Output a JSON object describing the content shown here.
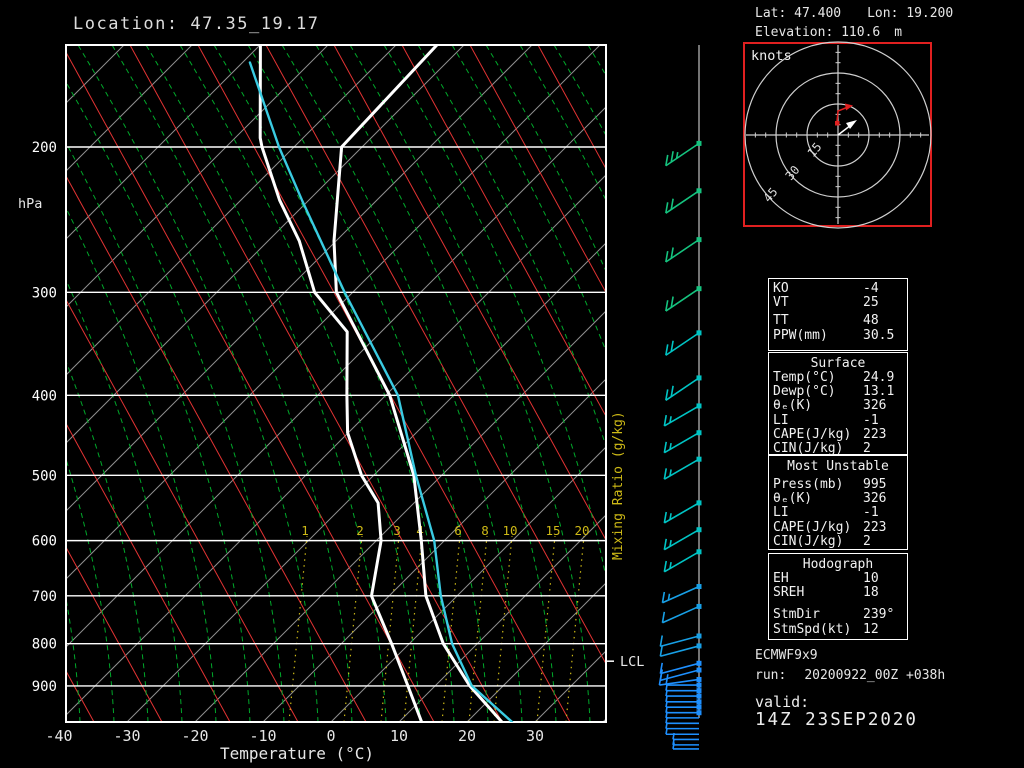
{
  "header": {
    "title": "Location: 47.35_19.17"
  },
  "info": {
    "lat_label": "Lat:",
    "lat": "47.400",
    "lon_label": "Lon:",
    "lon": "19.200",
    "elev_label": "Elevation:",
    "elev": "110.6",
    "elev_unit": "m"
  },
  "hodograph_panel": {
    "unit_label": "knots",
    "ring_labels": [
      "15",
      "30",
      "45"
    ],
    "ring_radii_kt": [
      15,
      30,
      45
    ]
  },
  "stats": {
    "boxes": [
      {
        "rows": [
          {
            "label": "KO",
            "value": "-4"
          },
          {
            "label": "VT",
            "value": "25"
          },
          {
            "label": "TT",
            "value": "48"
          },
          {
            "label": "PPW(mm)",
            "value": "30.5"
          }
        ]
      },
      {
        "header": "Surface",
        "rows": [
          {
            "label": "Temp(°C)",
            "value": "24.9"
          },
          {
            "label": "Dewp(°C)",
            "value": "13.1"
          },
          {
            "label": "θₑ(K)",
            "value": "326"
          },
          {
            "label": "LI",
            "value": "-1"
          },
          {
            "label": "CAPE(J/kg)",
            "value": "223"
          },
          {
            "label": "CIN(J/kg)",
            "value": "2"
          }
        ]
      },
      {
        "header": "Most Unstable",
        "rows": [
          {
            "label": "Press(mb)",
            "value": "995"
          },
          {
            "label": "θₑ(K)",
            "value": "326"
          },
          {
            "label": "LI",
            "value": "-1"
          },
          {
            "label": "CAPE(J/kg)",
            "value": "223"
          },
          {
            "label": "CIN(J/kg)",
            "value": "2"
          }
        ]
      },
      {
        "header": "Hodograph",
        "rows": [
          {
            "label": "EH",
            "value": "10"
          },
          {
            "label": "SREH",
            "value": "18"
          },
          {
            "label": "StmDir",
            "value": "239°"
          },
          {
            "label": "StmSpd(kt)",
            "value": "12"
          }
        ]
      }
    ]
  },
  "model": {
    "name": "ECMWF9x9",
    "run_label": "run:",
    "run_value": "20200922_00Z +038h",
    "valid_label": "valid:",
    "valid_value": "14Z 23SEP2020"
  },
  "chart_data": {
    "type": "skewt_log_p",
    "title": "Location: 47.35_19.17",
    "xlabel": "Temperature (°C)",
    "ylabel": "hPa",
    "pressure_axis_hpa": [
      200,
      300,
      400,
      500,
      600,
      700,
      800,
      900
    ],
    "temp_axis_c": [
      -40,
      -30,
      -20,
      -10,
      0,
      10,
      20,
      30
    ],
    "pressure_range_hpa": [
      150,
      995
    ],
    "grid": "skewt (isotherms 45°, dry/moist adiabats, mixing-ratio lines)",
    "series": [
      {
        "name": "temperature",
        "color": "#ffffff",
        "points": [
          [
            995,
            25.1
          ],
          [
            900,
            15.1
          ],
          [
            800,
            5.0
          ],
          [
            700,
            -4.6
          ],
          [
            600,
            -13.4
          ],
          [
            500,
            -24.1
          ],
          [
            400,
            -39.4
          ],
          [
            300,
            -62.4
          ],
          [
            260,
            -70.3
          ],
          [
            200,
            -83.0
          ],
          [
            150,
            -84.0
          ]
        ]
      },
      {
        "name": "dewpoint",
        "color": "#ffffff",
        "points": [
          [
            995,
            13.3
          ],
          [
            900,
            6.0
          ],
          [
            800,
            -2.6
          ],
          [
            700,
            -12.6
          ],
          [
            600,
            -19.3
          ],
          [
            540,
            -25.3
          ],
          [
            500,
            -31.8
          ],
          [
            444,
            -40.1
          ],
          [
            400,
            -45.7
          ],
          [
            335,
            -55.0
          ],
          [
            300,
            -65.6
          ],
          [
            260,
            -75.4
          ],
          [
            232,
            -84.3
          ],
          [
            200,
            -94.7
          ],
          [
            195,
            -96.3
          ],
          [
            150,
            -110.1
          ]
        ]
      },
      {
        "name": "virtual_temperature",
        "color": "#3acbe2",
        "points": [
          [
            995,
            26.6
          ],
          [
            900,
            15.4
          ],
          [
            800,
            6.3
          ],
          [
            700,
            -2.4
          ],
          [
            600,
            -11.5
          ],
          [
            500,
            -23.8
          ],
          [
            400,
            -38.2
          ],
          [
            300,
            -61.2
          ],
          [
            232,
            -81.0
          ],
          [
            200,
            -92.2
          ],
          [
            158,
            -108.9
          ]
        ]
      }
    ],
    "lcl": {
      "label": "LCL",
      "pressure_hpa": 840
    },
    "mixing_ratio_label_title": "Mixing Ratio (g/kg)",
    "mixing_ratio_labels": [
      {
        "v": "1",
        "x": 305
      },
      {
        "v": "2",
        "x": 360
      },
      {
        "v": "3",
        "x": 397
      },
      {
        "v": "4",
        "x": 420
      },
      {
        "v": "6",
        "x": 458
      },
      {
        "v": "8",
        "x": 485
      },
      {
        "v": "10",
        "x": 510
      },
      {
        "v": "15",
        "x": 553
      },
      {
        "v": "20",
        "x": 582
      }
    ],
    "wind_barbs": [
      {
        "p": 198,
        "spd": 25
      },
      {
        "p": 226,
        "spd": 20
      },
      {
        "p": 259,
        "spd": 20
      },
      {
        "p": 297,
        "spd": 20
      },
      {
        "p": 336,
        "spd": 20
      },
      {
        "p": 381,
        "spd": 20
      },
      {
        "p": 412,
        "spd": 15
      },
      {
        "p": 444,
        "spd": 15
      },
      {
        "p": 478,
        "spd": 15
      },
      {
        "p": 540,
        "spd": 15
      },
      {
        "p": 582,
        "spd": 15
      },
      {
        "p": 619,
        "spd": 15
      },
      {
        "p": 682,
        "spd": 15
      },
      {
        "p": 721,
        "spd": 10
      },
      {
        "p": 783,
        "spd": 10
      },
      {
        "p": 805,
        "spd": 10
      },
      {
        "p": 845,
        "spd": 10
      },
      {
        "p": 861,
        "spd": 10
      },
      {
        "p": 884,
        "spd": 10
      },
      {
        "p": 898,
        "spd": 10
      },
      {
        "p": 912,
        "spd": 7
      },
      {
        "p": 926,
        "spd": 7
      },
      {
        "p": 941,
        "spd": 7
      },
      {
        "p": 955,
        "spd": 5
      },
      {
        "p": 970,
        "spd": 5
      },
      {
        "p": 984,
        "spd": 5
      },
      {
        "p": 999,
        "spd": 5
      },
      {
        "p": 1014,
        "spd": 5
      },
      {
        "p": 1030,
        "spd": 5
      },
      {
        "p": 1045,
        "spd": 5
      },
      {
        "p": 1061,
        "spd": 5
      },
      {
        "p": 1073,
        "spd": 5
      }
    ],
    "hodograph": {
      "storm_motion": {
        "dir_deg": 239,
        "spd_kt": 12
      },
      "rings_kt": [
        15,
        30,
        45
      ]
    },
    "colors": {
      "isotherm": "#8f8f8f",
      "dry_adiabat": "#e23333",
      "moist_adiabat": "#00a82a",
      "mixing_ratio": "#cdb916",
      "frame": "#ffffff",
      "virtual_curve": "#3acbe2",
      "barb_green": "#15c37f",
      "barb_teal": "#00c4c4",
      "barb_skyblue": "#18a0e6",
      "barb_blue": "#1e90ff",
      "hodo_box": "#e02020"
    }
  }
}
